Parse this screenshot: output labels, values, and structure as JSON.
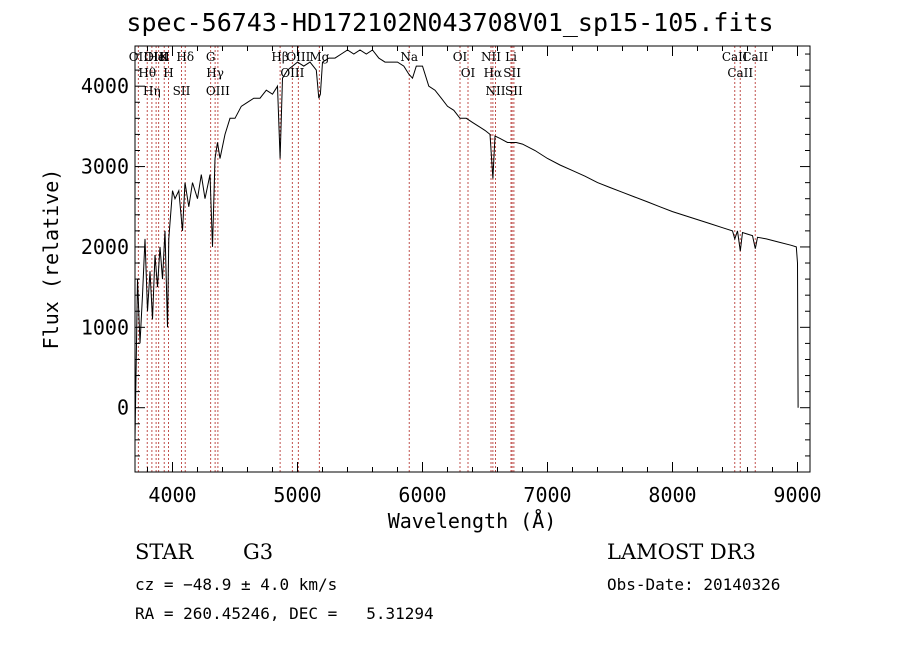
{
  "chart_data": {
    "type": "line",
    "title": "spec-56743-HD172102N043708V01_sp15-105.fits",
    "xlabel": "Wavelength (Å)",
    "ylabel": "Flux (relative)",
    "xlim": [
      3700,
      9100
    ],
    "ylim": [
      -800,
      4500
    ],
    "x_ticks": [
      4000,
      5000,
      6000,
      7000,
      8000,
      9000
    ],
    "y_ticks": [
      0,
      1000,
      2000,
      3000,
      4000
    ],
    "x_tick_labels": [
      "4000",
      "5000",
      "6000",
      "7000",
      "8000",
      "9000"
    ],
    "y_tick_labels": [
      "0",
      "1000",
      "2000",
      "3000",
      "4000"
    ],
    "series": [
      {
        "color": "#000000",
        "x": [
          3700,
          3720,
          3740,
          3760,
          3780,
          3800,
          3820,
          3840,
          3860,
          3880,
          3900,
          3920,
          3940,
          3960,
          3970,
          3980,
          4000,
          4020,
          4050,
          4080,
          4100,
          4130,
          4160,
          4200,
          4230,
          4260,
          4300,
          4320,
          4340,
          4360,
          4380,
          4420,
          4460,
          4500,
          4550,
          4600,
          4650,
          4700,
          4750,
          4800,
          4840,
          4861,
          4880,
          4920,
          4960,
          5000,
          5050,
          5100,
          5150,
          5170,
          5183,
          5200,
          5250,
          5300,
          5350,
          5400,
          5450,
          5500,
          5550,
          5600,
          5650,
          5700,
          5750,
          5800,
          5850,
          5890,
          5920,
          5950,
          6000,
          6050,
          6100,
          6150,
          6200,
          6250,
          6300,
          6350,
          6400,
          6450,
          6500,
          6540,
          6563,
          6580,
          6620,
          6680,
          6750,
          6800,
          6900,
          7000,
          7100,
          7200,
          7300,
          7400,
          7500,
          7600,
          7700,
          7800,
          7900,
          8000,
          8100,
          8200,
          8300,
          8400,
          8480,
          8498,
          8520,
          8542,
          8560,
          8600,
          8640,
          8662,
          8680,
          8750,
          8850,
          8950,
          8990,
          9000,
          9005
        ],
        "y": [
          -400,
          1600,
          800,
          1400,
          2100,
          1200,
          1700,
          1100,
          1900,
          1500,
          2000,
          1600,
          2200,
          1000,
          2100,
          2300,
          2700,
          2600,
          2700,
          2200,
          2800,
          2500,
          2800,
          2600,
          2900,
          2600,
          2900,
          2000,
          3100,
          3300,
          3100,
          3400,
          3600,
          3600,
          3750,
          3800,
          3850,
          3850,
          3950,
          3900,
          4000,
          3100,
          4100,
          4200,
          4250,
          4300,
          4250,
          4300,
          4200,
          3850,
          3900,
          4300,
          4350,
          4350,
          4400,
          4450,
          4400,
          4450,
          4400,
          4450,
          4350,
          4300,
          4300,
          4300,
          4250,
          4150,
          4100,
          4250,
          4250,
          4000,
          3950,
          3850,
          3750,
          3700,
          3600,
          3600,
          3550,
          3500,
          3450,
          3400,
          2850,
          3380,
          3350,
          3300,
          3300,
          3280,
          3200,
          3100,
          3020,
          2950,
          2880,
          2800,
          2740,
          2680,
          2620,
          2560,
          2500,
          2440,
          2390,
          2340,
          2290,
          2240,
          2200,
          2100,
          2200,
          1950,
          2180,
          2160,
          2140,
          1980,
          2120,
          2100,
          2060,
          2020,
          2000,
          1800,
          0
        ]
      }
    ],
    "reference_lines": [
      {
        "label": "Hθ",
        "x": 3798
      },
      {
        "label": "OII",
        "x": 3727
      },
      {
        "label": "OIII",
        "x": 3869
      },
      {
        "label": "HeI",
        "x": 3889
      },
      {
        "label": "Hη",
        "x": 3835
      },
      {
        "label": "K",
        "x": 3934
      },
      {
        "label": "SII",
        "x": 4072
      },
      {
        "label": "H",
        "x": 3968
      },
      {
        "label": "Hδ",
        "x": 4102
      },
      {
        "label": "OIII",
        "x": 4363
      },
      {
        "label": "Hγ",
        "x": 4341
      },
      {
        "label": "G",
        "x": 4305
      },
      {
        "label": "OIII",
        "x": 5007
      },
      {
        "label": "OIII",
        "x": 4959
      },
      {
        "label": "Hβ",
        "x": 4861
      },
      {
        "label": "Mg",
        "x": 5175
      },
      {
        "label": "Na",
        "x": 5894
      },
      {
        "label": "OI",
        "x": 6300
      },
      {
        "label": "OI",
        "x": 6364
      },
      {
        "label": "Hα",
        "x": 6563
      },
      {
        "label": "SII",
        "x": 6717
      },
      {
        "label": "NII",
        "x": 6548
      },
      {
        "label": "Li",
        "x": 6708
      },
      {
        "label": "NII",
        "x": 6584
      },
      {
        "label": "SII",
        "x": 6731
      },
      {
        "label": "CaII",
        "x": 8542
      },
      {
        "label": "CaII",
        "x": 8498
      },
      {
        "label": "CaII",
        "x": 8662
      }
    ]
  },
  "info": {
    "object_class": "STAR",
    "subclass": "G3",
    "survey": "LAMOST DR3",
    "cz": "cz = −48.9 ± 4.0 km/s",
    "obs_date": "Obs-Date: 20140326",
    "coords": "RA = 260.45246, DEC =   5.31294"
  },
  "colors": {
    "spectrum": "#000000",
    "reference_line": "#c0504d"
  }
}
